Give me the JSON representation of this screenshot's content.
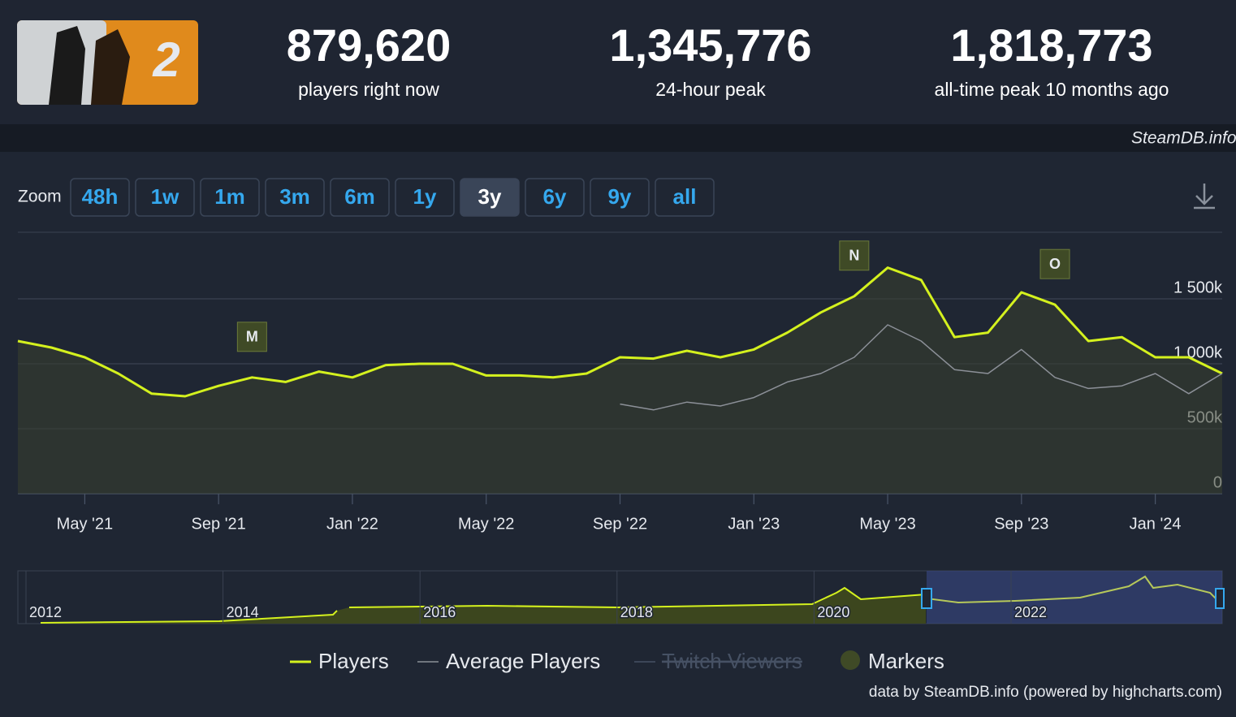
{
  "header": {
    "stats": [
      {
        "value": "879,620",
        "label": "players right now"
      },
      {
        "value": "1,345,776",
        "label": "24-hour peak"
      },
      {
        "value": "1,818,773",
        "label": "all-time peak 10 months ago"
      }
    ],
    "source": "SteamDB.info"
  },
  "zoom": {
    "label": "Zoom",
    "buttons": [
      "48h",
      "1w",
      "1m",
      "3m",
      "6m",
      "1y",
      "3y",
      "6y",
      "9y",
      "all"
    ],
    "selected": 6
  },
  "chart_data": {
    "type": "line",
    "x": [
      "2021-03",
      "2021-04",
      "2021-05",
      "2021-06",
      "2021-07",
      "2021-08",
      "2021-09",
      "2021-10",
      "2021-11",
      "2021-12",
      "2022-01",
      "2022-02",
      "2022-03",
      "2022-04",
      "2022-05",
      "2022-06",
      "2022-07",
      "2022-08",
      "2022-09",
      "2022-10",
      "2022-11",
      "2022-12",
      "2023-01",
      "2023-02",
      "2023-03",
      "2023-04",
      "2023-05",
      "2023-06",
      "2023-07",
      "2023-08",
      "2023-09",
      "2023-10",
      "2023-11",
      "2023-12",
      "2024-01",
      "2024-02",
      "2024-03"
    ],
    "series": [
      {
        "name": "Players",
        "color": "#d4f11e",
        "values": [
          1175000,
          1125000,
          1050000,
          925000,
          770000,
          750000,
          830000,
          895000,
          860000,
          940000,
          895000,
          990000,
          1000000,
          1000000,
          910000,
          910000,
          895000,
          925000,
          1050000,
          1040000,
          1100000,
          1050000,
          1110000,
          1240000,
          1395000,
          1520000,
          1740000,
          1645000,
          1205000,
          1240000,
          1550000,
          1455000,
          1175000,
          1205000,
          1050000,
          1050000,
          925000
        ]
      },
      {
        "name": "Average Players",
        "color": "#8c9098",
        "values": [
          null,
          null,
          null,
          null,
          null,
          null,
          null,
          null,
          null,
          null,
          null,
          null,
          null,
          null,
          null,
          null,
          null,
          null,
          690000,
          645000,
          705000,
          675000,
          740000,
          860000,
          925000,
          1050000,
          1300000,
          1175000,
          955000,
          925000,
          1110000,
          895000,
          810000,
          830000,
          925000,
          770000,
          925000
        ]
      },
      {
        "name": "Twitch Viewers",
        "color": "#465164",
        "hidden": true
      }
    ],
    "markers": {
      "name": "Markers",
      "color": "#3f4a26",
      "items": [
        {
          "label": "M",
          "x": "2021-10"
        },
        {
          "label": "N",
          "x": "2023-04"
        },
        {
          "label": "O",
          "x": "2023-10"
        }
      ]
    },
    "xlim": [
      "2021-03",
      "2024-03"
    ],
    "xticks": [
      {
        "value": "2021-05",
        "label": "May '21"
      },
      {
        "value": "2021-09",
        "label": "Sep '21"
      },
      {
        "value": "2022-01",
        "label": "Jan '22"
      },
      {
        "value": "2022-05",
        "label": "May '22"
      },
      {
        "value": "2022-09",
        "label": "Sep '22"
      },
      {
        "value": "2023-01",
        "label": "Jan '23"
      },
      {
        "value": "2023-05",
        "label": "May '23"
      },
      {
        "value": "2023-09",
        "label": "Sep '23"
      },
      {
        "value": "2024-01",
        "label": "Jan '24"
      }
    ],
    "ylim": [
      0,
      2000000
    ],
    "yticks": [
      0,
      {
        "value": 500000,
        "label": "500k"
      },
      {
        "value": 1000000,
        "label": "1 000k"
      },
      {
        "value": 1500000,
        "label": "1 500k"
      }
    ],
    "grid": true
  },
  "navigator": {
    "labels": [
      "2012",
      "2014",
      "2016",
      "2018",
      "2020",
      "2022"
    ]
  },
  "credits": "data by SteamDB.info (powered by highcharts.com)"
}
